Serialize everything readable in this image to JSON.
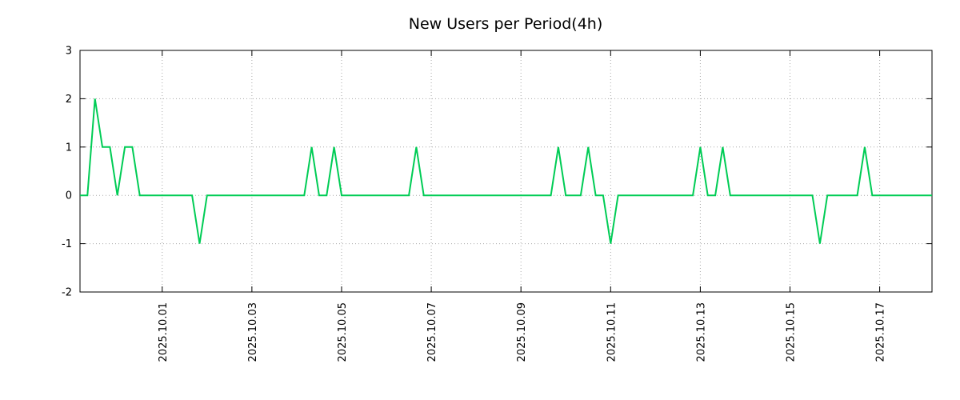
{
  "title": "New Users per Period(4h)",
  "colors": {
    "line": "#00cc55",
    "grid": "#aaaaaa",
    "axis": "#000000",
    "background": "#ffffff"
  },
  "chart_data": {
    "type": "line",
    "title": "New Users per Period(4h)",
    "xlabel": "",
    "ylabel": "",
    "legend": "none",
    "grid": "dotted",
    "ylim": [
      -2,
      3
    ],
    "y_ticks": [
      -2,
      -1,
      0,
      1,
      2,
      3
    ],
    "x_start": "2025-09-29 04:00",
    "period_hours": 4,
    "x_ticks": [
      {
        "label": "2025.10.01",
        "index": 11
      },
      {
        "label": "2025.10.03",
        "index": 23
      },
      {
        "label": "2025.10.05",
        "index": 35
      },
      {
        "label": "2025.10.07",
        "index": 47
      },
      {
        "label": "2025.10.09",
        "index": 59
      },
      {
        "label": "2025.10.11",
        "index": 71
      },
      {
        "label": "2025.10.13",
        "index": 83
      },
      {
        "label": "2025.10.15",
        "index": 95
      },
      {
        "label": "2025.10.17",
        "index": 107
      }
    ],
    "values": [
      0,
      0,
      2,
      1,
      1,
      0,
      1,
      1,
      0,
      0,
      0,
      0,
      0,
      0,
      0,
      0,
      -1,
      0,
      0,
      0,
      0,
      0,
      0,
      0,
      0,
      0,
      0,
      0,
      0,
      0,
      0,
      1,
      0,
      0,
      1,
      0,
      0,
      0,
      0,
      0,
      0,
      0,
      0,
      0,
      0,
      1,
      0,
      0,
      0,
      0,
      0,
      0,
      0,
      0,
      0,
      0,
      0,
      0,
      0,
      0,
      0,
      0,
      0,
      0,
      1,
      0,
      0,
      0,
      1,
      0,
      0,
      -1,
      0,
      0,
      0,
      0,
      0,
      0,
      0,
      0,
      0,
      0,
      0,
      1,
      0,
      0,
      1,
      0,
      0,
      0,
      0,
      0,
      0,
      0,
      0,
      0,
      0,
      0,
      0,
      -1,
      0,
      0,
      0,
      0,
      0,
      1,
      0,
      0,
      0,
      0,
      0,
      0,
      0,
      0,
      0
    ],
    "nonzero_events": [
      {
        "t": "2025-09-29 12:00",
        "v": 2
      },
      {
        "t": "2025-09-29 16:00",
        "v": 1
      },
      {
        "t": "2025-09-29 20:00",
        "v": 1
      },
      {
        "t": "2025-09-30 04:00",
        "v": 1
      },
      {
        "t": "2025-09-30 08:00",
        "v": 1
      },
      {
        "t": "2025-10-01 20:00",
        "v": -1
      },
      {
        "t": "2025-10-04 08:00",
        "v": 1
      },
      {
        "t": "2025-10-04 20:00",
        "v": 1
      },
      {
        "t": "2025-10-06 16:00",
        "v": 1
      },
      {
        "t": "2025-10-09 20:00",
        "v": 1
      },
      {
        "t": "2025-10-10 12:00",
        "v": 1
      },
      {
        "t": "2025-10-11 00:00",
        "v": -1
      },
      {
        "t": "2025-10-13 00:00",
        "v": 1
      },
      {
        "t": "2025-10-13 12:00",
        "v": 1
      },
      {
        "t": "2025-10-15 16:00",
        "v": -1
      },
      {
        "t": "2025-10-16 16:00",
        "v": 1
      }
    ]
  }
}
